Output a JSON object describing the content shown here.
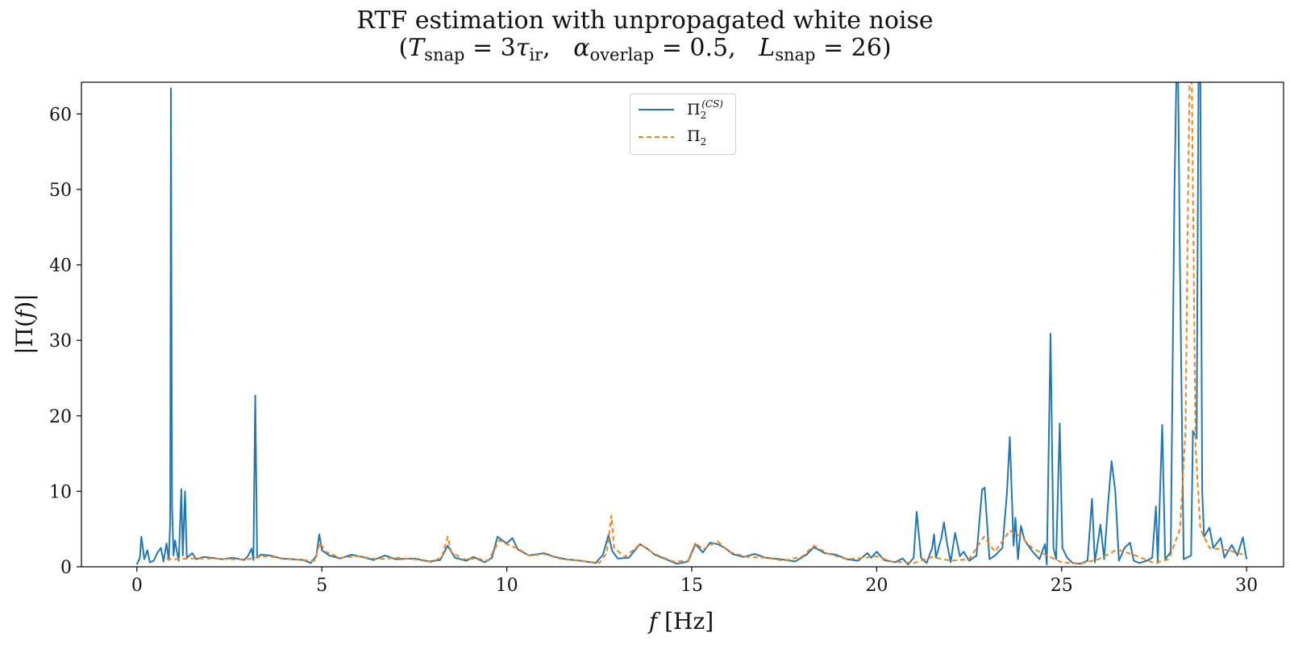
{
  "chart_data": {
    "type": "line",
    "title": "RTF estimation with unpropagated white noise",
    "subtitle": "(T_snap = 3τ_ir,   α_overlap = 0.5,   L_snap = 26)",
    "xlabel": "f [Hz]",
    "ylabel": "|Π(f)|",
    "xlim": [
      -1.5,
      31.0
    ],
    "ylim": [
      0,
      64.2
    ],
    "xticks": [
      0,
      5,
      10,
      15,
      20,
      25,
      30
    ],
    "yticks": [
      0,
      10,
      20,
      30,
      40,
      50,
      60
    ],
    "grid": false,
    "legend_position": "top-center",
    "series": [
      {
        "name": "Π_2^(CS)",
        "color": "#1f77b4",
        "style": "solid",
        "points": [
          [
            0.0,
            0.3
          ],
          [
            0.08,
            1.2
          ],
          [
            0.12,
            4.0
          ],
          [
            0.2,
            1.0
          ],
          [
            0.28,
            2.2
          ],
          [
            0.35,
            0.6
          ],
          [
            0.45,
            0.8
          ],
          [
            0.55,
            1.8
          ],
          [
            0.65,
            2.5
          ],
          [
            0.72,
            0.7
          ],
          [
            0.8,
            3.1
          ],
          [
            0.86,
            0.9
          ],
          [
            0.9,
            6.0
          ],
          [
            0.92,
            63.4
          ],
          [
            0.95,
            8.0
          ],
          [
            0.99,
            1.5
          ],
          [
            1.03,
            3.5
          ],
          [
            1.08,
            2.0
          ],
          [
            1.13,
            0.8
          ],
          [
            1.2,
            10.3
          ],
          [
            1.24,
            1.5
          ],
          [
            1.3,
            10.0
          ],
          [
            1.35,
            1.2
          ],
          [
            1.42,
            1.5
          ],
          [
            1.5,
            1.8
          ],
          [
            1.6,
            1.0
          ],
          [
            1.8,
            1.3
          ],
          [
            2.0,
            1.2
          ],
          [
            2.3,
            1.0
          ],
          [
            2.6,
            1.2
          ],
          [
            2.9,
            0.9
          ],
          [
            3.0,
            1.4
          ],
          [
            3.1,
            2.4
          ],
          [
            3.15,
            0.9
          ],
          [
            3.2,
            22.7
          ],
          [
            3.25,
            1.2
          ],
          [
            3.35,
            1.6
          ],
          [
            3.6,
            1.5
          ],
          [
            3.9,
            1.1
          ],
          [
            4.2,
            1.0
          ],
          [
            4.5,
            0.9
          ],
          [
            4.7,
            0.5
          ],
          [
            4.85,
            1.4
          ],
          [
            4.93,
            4.3
          ],
          [
            5.0,
            2.2
          ],
          [
            5.2,
            1.5
          ],
          [
            5.5,
            1.1
          ],
          [
            5.8,
            1.6
          ],
          [
            6.1,
            1.3
          ],
          [
            6.4,
            0.9
          ],
          [
            6.7,
            1.5
          ],
          [
            7.0,
            1.0
          ],
          [
            7.5,
            1.1
          ],
          [
            7.9,
            0.7
          ],
          [
            8.2,
            0.9
          ],
          [
            8.4,
            2.8
          ],
          [
            8.6,
            1.2
          ],
          [
            8.9,
            0.8
          ],
          [
            9.1,
            1.3
          ],
          [
            9.4,
            0.6
          ],
          [
            9.6,
            1.2
          ],
          [
            9.75,
            4.0
          ],
          [
            9.85,
            3.6
          ],
          [
            10.0,
            3.1
          ],
          [
            10.15,
            3.8
          ],
          [
            10.3,
            2.3
          ],
          [
            10.6,
            1.5
          ],
          [
            11.0,
            1.8
          ],
          [
            11.3,
            1.3
          ],
          [
            11.6,
            1.0
          ],
          [
            12.0,
            0.8
          ],
          [
            12.4,
            0.5
          ],
          [
            12.6,
            1.6
          ],
          [
            12.75,
            4.2
          ],
          [
            12.85,
            2.1
          ],
          [
            13.0,
            1.1
          ],
          [
            13.3,
            1.2
          ],
          [
            13.6,
            3.0
          ],
          [
            13.8,
            2.4
          ],
          [
            14.0,
            1.6
          ],
          [
            14.3,
            1.0
          ],
          [
            14.6,
            0.4
          ],
          [
            14.9,
            0.7
          ],
          [
            15.1,
            3.0
          ],
          [
            15.3,
            1.9
          ],
          [
            15.5,
            3.2
          ],
          [
            15.7,
            3.0
          ],
          [
            15.9,
            2.5
          ],
          [
            16.1,
            1.7
          ],
          [
            16.4,
            1.3
          ],
          [
            16.7,
            1.7
          ],
          [
            17.0,
            1.2
          ],
          [
            17.4,
            1.0
          ],
          [
            17.8,
            0.7
          ],
          [
            18.1,
            1.6
          ],
          [
            18.3,
            2.6
          ],
          [
            18.6,
            1.8
          ],
          [
            18.9,
            1.6
          ],
          [
            19.2,
            1.0
          ],
          [
            19.5,
            0.8
          ],
          [
            19.75,
            1.8
          ],
          [
            19.85,
            1.2
          ],
          [
            20.0,
            2.0
          ],
          [
            20.2,
            0.9
          ],
          [
            20.5,
            0.6
          ],
          [
            20.7,
            1.1
          ],
          [
            20.85,
            0.3
          ],
          [
            21.0,
            1.2
          ],
          [
            21.08,
            7.3
          ],
          [
            21.2,
            1.2
          ],
          [
            21.35,
            0.5
          ],
          [
            21.5,
            2.5
          ],
          [
            21.55,
            4.3
          ],
          [
            21.6,
            1.2
          ],
          [
            21.75,
            3.8
          ],
          [
            21.82,
            5.9
          ],
          [
            21.9,
            3.2
          ],
          [
            22.0,
            0.6
          ],
          [
            22.12,
            4.5
          ],
          [
            22.25,
            1.4
          ],
          [
            22.35,
            2.0
          ],
          [
            22.5,
            0.8
          ],
          [
            22.7,
            1.5
          ],
          [
            22.85,
            10.2
          ],
          [
            22.92,
            10.5
          ],
          [
            23.05,
            1.0
          ],
          [
            23.2,
            1.5
          ],
          [
            23.4,
            2.5
          ],
          [
            23.52,
            9.6
          ],
          [
            23.6,
            17.2
          ],
          [
            23.7,
            2.8
          ],
          [
            23.75,
            6.5
          ],
          [
            23.82,
            1.0
          ],
          [
            23.9,
            5.4
          ],
          [
            24.0,
            3.5
          ],
          [
            24.2,
            2.1
          ],
          [
            24.4,
            1.0
          ],
          [
            24.55,
            3.0
          ],
          [
            24.6,
            0.3
          ],
          [
            24.7,
            30.9
          ],
          [
            24.78,
            2.5
          ],
          [
            24.85,
            1.0
          ],
          [
            24.95,
            19.0
          ],
          [
            25.02,
            2.5
          ],
          [
            25.15,
            1.2
          ],
          [
            25.3,
            0.5
          ],
          [
            25.5,
            0.4
          ],
          [
            25.7,
            0.8
          ],
          [
            25.82,
            9.0
          ],
          [
            25.9,
            0.6
          ],
          [
            26.05,
            5.6
          ],
          [
            26.15,
            1.0
          ],
          [
            26.25,
            8.0
          ],
          [
            26.35,
            14.0
          ],
          [
            26.45,
            10.0
          ],
          [
            26.55,
            0.8
          ],
          [
            26.7,
            2.5
          ],
          [
            26.85,
            3.2
          ],
          [
            26.95,
            0.8
          ],
          [
            27.1,
            0.5
          ],
          [
            27.3,
            0.8
          ],
          [
            27.45,
            1.2
          ],
          [
            27.55,
            8.0
          ],
          [
            27.6,
            0.5
          ],
          [
            27.72,
            18.8
          ],
          [
            27.8,
            1.0
          ],
          [
            27.95,
            2.0
          ],
          [
            28.05,
            50.0
          ],
          [
            28.1,
            64.2
          ],
          [
            28.15,
            64.2
          ],
          [
            28.2,
            40.0
          ],
          [
            28.3,
            1.0
          ],
          [
            28.5,
            1.5
          ],
          [
            28.55,
            18.0
          ],
          [
            28.65,
            17.0
          ],
          [
            28.7,
            64.2
          ],
          [
            28.75,
            64.2
          ],
          [
            28.8,
            10.0
          ],
          [
            28.85,
            4.0
          ],
          [
            29.0,
            5.2
          ],
          [
            29.1,
            2.5
          ],
          [
            29.3,
            3.8
          ],
          [
            29.4,
            1.2
          ],
          [
            29.6,
            2.9
          ],
          [
            29.75,
            1.5
          ],
          [
            29.9,
            3.9
          ],
          [
            30.0,
            1.0
          ]
        ]
      },
      {
        "name": "Π_2",
        "color": "#ff7f0e",
        "style": "dashed",
        "points": [
          [
            0.8,
            1.1
          ],
          [
            1.0,
            1.0
          ],
          [
            1.5,
            1.1
          ],
          [
            2.0,
            1.1
          ],
          [
            2.5,
            1.0
          ],
          [
            3.0,
            1.0
          ],
          [
            3.2,
            1.2
          ],
          [
            3.5,
            1.4
          ],
          [
            4.0,
            1.1
          ],
          [
            4.5,
            0.9
          ],
          [
            4.8,
            0.8
          ],
          [
            4.95,
            3.2
          ],
          [
            5.1,
            2.0
          ],
          [
            5.5,
            1.2
          ],
          [
            6.0,
            1.4
          ],
          [
            6.5,
            1.0
          ],
          [
            7.0,
            1.2
          ],
          [
            7.5,
            1.0
          ],
          [
            8.0,
            0.6
          ],
          [
            8.25,
            1.4
          ],
          [
            8.4,
            4.0
          ],
          [
            8.5,
            2.0
          ],
          [
            8.8,
            1.0
          ],
          [
            9.2,
            1.1
          ],
          [
            9.5,
            0.8
          ],
          [
            9.8,
            3.5
          ],
          [
            10.0,
            3.0
          ],
          [
            10.3,
            2.4
          ],
          [
            10.6,
            1.5
          ],
          [
            11.0,
            1.7
          ],
          [
            11.5,
            1.0
          ],
          [
            12.0,
            0.8
          ],
          [
            12.5,
            0.5
          ],
          [
            12.7,
            1.8
          ],
          [
            12.83,
            6.8
          ],
          [
            12.9,
            2.5
          ],
          [
            13.2,
            1.3
          ],
          [
            13.6,
            3.0
          ],
          [
            14.0,
            1.7
          ],
          [
            14.5,
            0.7
          ],
          [
            14.9,
            0.8
          ],
          [
            15.1,
            3.2
          ],
          [
            15.3,
            2.3
          ],
          [
            15.7,
            3.4
          ],
          [
            16.0,
            2.0
          ],
          [
            16.5,
            1.3
          ],
          [
            17.0,
            1.2
          ],
          [
            17.5,
            0.8
          ],
          [
            18.0,
            1.4
          ],
          [
            18.3,
            2.8
          ],
          [
            18.7,
            1.7
          ],
          [
            19.2,
            1.0
          ],
          [
            19.7,
            1.2
          ],
          [
            20.0,
            1.4
          ],
          [
            20.4,
            0.7
          ],
          [
            21.0,
            0.5
          ],
          [
            21.5,
            1.3
          ],
          [
            22.0,
            0.8
          ],
          [
            22.5,
            1.0
          ],
          [
            22.9,
            4.0
          ],
          [
            23.2,
            2.0
          ],
          [
            23.6,
            4.8
          ],
          [
            23.9,
            4.0
          ],
          [
            24.2,
            2.5
          ],
          [
            24.6,
            1.5
          ],
          [
            25.0,
            0.6
          ],
          [
            25.5,
            0.4
          ],
          [
            26.0,
            1.0
          ],
          [
            26.5,
            2.3
          ],
          [
            27.0,
            1.5
          ],
          [
            27.5,
            0.5
          ],
          [
            27.9,
            1.0
          ],
          [
            28.2,
            5.0
          ],
          [
            28.35,
            18.0
          ],
          [
            28.42,
            50.0
          ],
          [
            28.46,
            64.2
          ],
          [
            28.52,
            64.2
          ],
          [
            28.56,
            45.0
          ],
          [
            28.62,
            16.0
          ],
          [
            28.75,
            5.0
          ],
          [
            29.0,
            2.5
          ],
          [
            29.5,
            2.2
          ],
          [
            30.0,
            1.5
          ]
        ]
      }
    ]
  }
}
